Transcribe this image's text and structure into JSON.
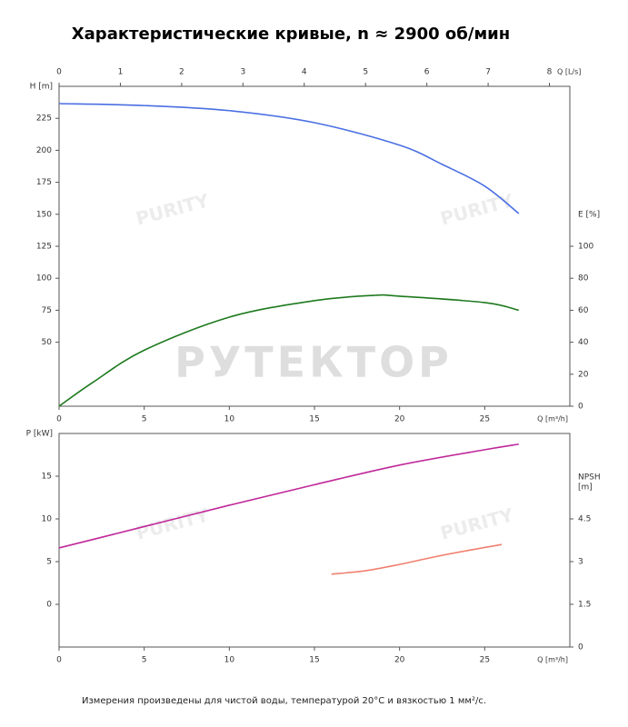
{
  "title": "Характеристические кривые, n ≈ 2900 об/мин",
  "note": "Измерения произведены для чистой воды, температурой 20°C и вязкостью 1 мм²/с.",
  "watermark": "РУТЕКТОР",
  "logo": "PURITY",
  "chart_data": [
    {
      "type": "line",
      "x_label": "Q [m³/h]",
      "y_label": "H [m]",
      "y2_label": [
        "E [%]"
      ],
      "x2_label": "Q [L/s]",
      "xlim": [
        0,
        30
      ],
      "xticks": [
        0,
        5,
        10,
        15,
        20,
        25
      ],
      "x2lim": [
        0,
        8.333
      ],
      "x2ticks": [
        0,
        1,
        2,
        3,
        4,
        5,
        6,
        7,
        8
      ],
      "ylim": [
        0,
        250
      ],
      "yticks": [
        50,
        75,
        100,
        125,
        150,
        175,
        200,
        225
      ],
      "ycolor": "#4a6fe3",
      "y2lim": [
        0,
        200
      ],
      "y2ticks": [
        0,
        20,
        40,
        60,
        80,
        100
      ],
      "y2color": "#1e7a1e",
      "series": [
        {
          "name": "H",
          "color": "#4a6fe3",
          "x": [
            0,
            5,
            10,
            15,
            20,
            22.5,
            25,
            27
          ],
          "values": [
            236.5,
            235,
            231,
            221.6,
            204,
            189,
            172,
            150.6
          ]
        },
        {
          "name": "E",
          "color": "#1e7a1e",
          "axis": "y2",
          "x": [
            0,
            2,
            5,
            10,
            15,
            18.5,
            20,
            25,
            27
          ],
          "values": [
            0,
            15,
            35,
            55.7,
            66,
            69.3,
            68.8,
            64.8,
            60
          ]
        }
      ]
    },
    {
      "type": "line",
      "x_label": "Q [m³/h]",
      "y_label": "P [kW]",
      "y2_label": [
        "NPSH",
        "[m]"
      ],
      "xlim": [
        0,
        30
      ],
      "xticks": [
        0,
        5,
        10,
        15,
        20,
        25
      ],
      "ylim": [
        -5,
        20
      ],
      "yticks": [
        0,
        5,
        10,
        15
      ],
      "ycolor": "#c0289a",
      "y2lim": [
        0,
        7.5
      ],
      "y2ticks": [
        0,
        1.5,
        3,
        4.5
      ],
      "y2color": "#f08070",
      "series": [
        {
          "name": "P",
          "color": "#c0289a",
          "x": [
            0,
            5,
            10,
            15,
            20,
            25,
            27
          ],
          "values": [
            6.6,
            9.1,
            11.6,
            14.0,
            16.3,
            18.1,
            18.75
          ]
        },
        {
          "name": "NPSH",
          "color": "#f08070",
          "axis": "y2",
          "x": [
            16,
            18,
            20,
            22,
            24,
            26
          ],
          "values": [
            2.56,
            2.68,
            2.9,
            3.16,
            3.39,
            3.6
          ]
        }
      ]
    }
  ]
}
